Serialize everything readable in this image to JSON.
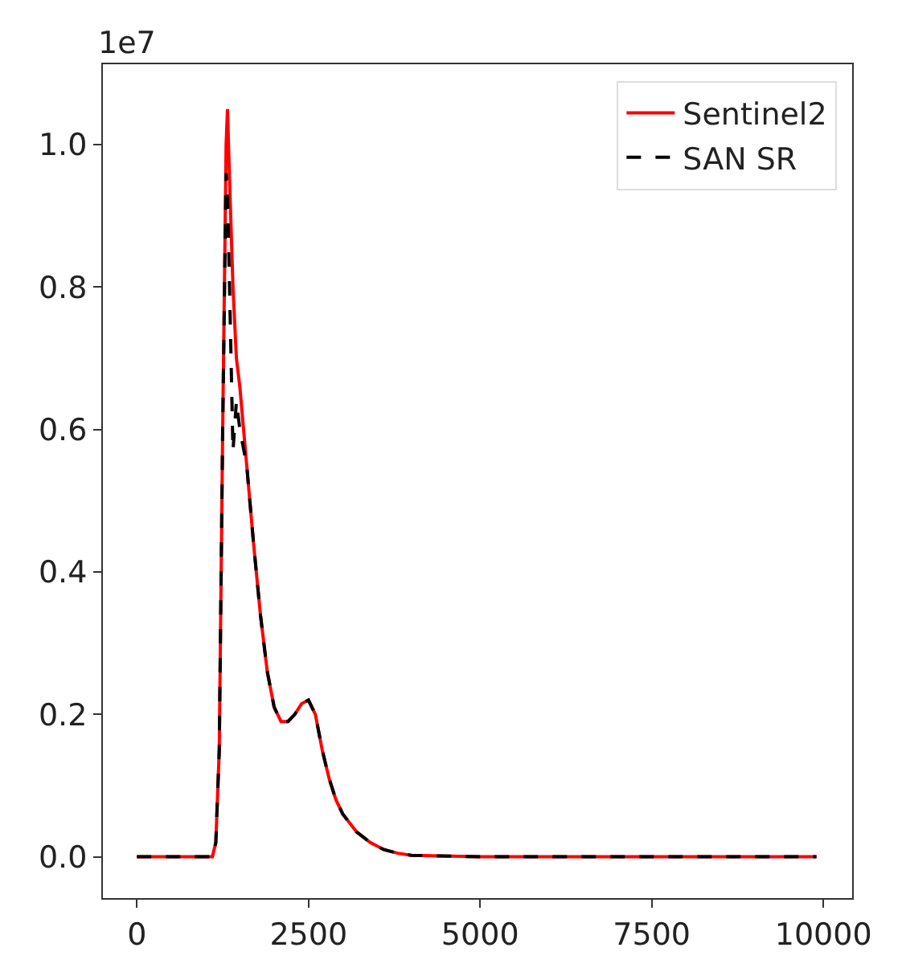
{
  "chart_data": {
    "type": "line",
    "x": [
      0,
      500,
      1000,
      1100,
      1150,
      1200,
      1250,
      1300,
      1320,
      1350,
      1400,
      1450,
      1500,
      1600,
      1700,
      1800,
      1900,
      2000,
      2100,
      2200,
      2300,
      2400,
      2500,
      2600,
      2700,
      2800,
      2900,
      3000,
      3200,
      3400,
      3600,
      3800,
      4000,
      5000,
      7500,
      9900
    ],
    "series": [
      {
        "name": "Sentinel2",
        "color": "#ff0000",
        "line_style": "solid",
        "values": [
          0,
          0,
          0,
          0,
          0.02,
          0.15,
          0.6,
          1.0,
          1.05,
          0.95,
          0.8,
          0.7,
          0.66,
          0.55,
          0.44,
          0.34,
          0.26,
          0.21,
          0.19,
          0.19,
          0.2,
          0.215,
          0.22,
          0.2,
          0.15,
          0.11,
          0.08,
          0.06,
          0.035,
          0.02,
          0.01,
          0.005,
          0.002,
          0,
          0,
          0
        ]
      },
      {
        "name": "SAN SR",
        "color": "#000000",
        "line_style": "dashed",
        "values": [
          0,
          0,
          0,
          0,
          0.02,
          0.15,
          0.6,
          0.96,
          0.93,
          0.8,
          0.57,
          0.64,
          0.6,
          0.55,
          0.44,
          0.34,
          0.26,
          0.21,
          0.19,
          0.19,
          0.2,
          0.215,
          0.22,
          0.2,
          0.15,
          0.11,
          0.08,
          0.06,
          0.035,
          0.02,
          0.01,
          0.005,
          0.002,
          0,
          0,
          0
        ]
      }
    ],
    "xlim": [
      -495,
      10420
    ],
    "ylim": [
      -0.058,
      1.113
    ],
    "xticks": [
      0,
      2500,
      5000,
      7500,
      10000
    ],
    "yticks": [
      {
        "value": 0,
        "label": "0.0"
      },
      0.2,
      0.4,
      0.6,
      0.8,
      {
        "value": 1,
        "label": "1.0"
      }
    ],
    "annotations": [
      "1e7"
    ],
    "legend": "top right"
  }
}
